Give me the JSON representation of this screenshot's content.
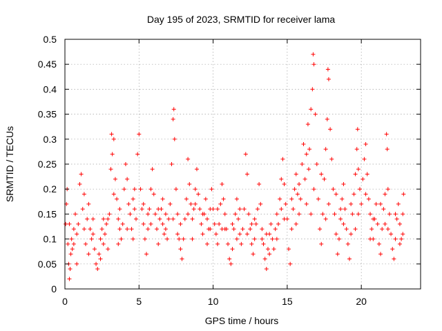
{
  "chart_data": {
    "type": "scatter",
    "title": "Day 195 of 2023, SRMTID for receiver lama",
    "xlabel": "GPS time / hours",
    "ylabel": "SRMTID / TECUs",
    "xlim": [
      0,
      24
    ],
    "ylim": [
      0,
      0.5
    ],
    "x_ticks": [
      0,
      5,
      10,
      15,
      20
    ],
    "x_tick_labels": [
      "0",
      "5",
      "10",
      "15",
      "20"
    ],
    "y_ticks": [
      0,
      0.05,
      0.1,
      0.15,
      0.2,
      0.25,
      0.3,
      0.35,
      0.4,
      0.45,
      0.5
    ],
    "y_tick_labels": [
      "0",
      "0.05",
      "0.1",
      "0.15",
      "0.2",
      "0.25",
      "0.3",
      "0.35",
      "0.4",
      "0.45",
      "0.5"
    ],
    "grid": true,
    "marker": "+",
    "marker_color": "#ff0000",
    "series": [
      {
        "name": "SRMTID",
        "points": [
          [
            0.05,
            0.13
          ],
          [
            0.1,
            0.17
          ],
          [
            0.15,
            0.2
          ],
          [
            0.2,
            0.09
          ],
          [
            0.25,
            0.05
          ],
          [
            0.3,
            0.02
          ],
          [
            0.35,
            0.04
          ],
          [
            0.4,
            0.07
          ],
          [
            0.45,
            0.1
          ],
          [
            0.5,
            0.08
          ],
          [
            0.6,
            0.12
          ],
          [
            0.7,
            0.15
          ],
          [
            0.8,
            0.11
          ],
          [
            0.9,
            0.13
          ],
          [
            1.0,
            0.21
          ],
          [
            1.1,
            0.23
          ],
          [
            1.2,
            0.16
          ],
          [
            1.3,
            0.12
          ],
          [
            1.4,
            0.09
          ],
          [
            1.5,
            0.14
          ],
          [
            1.6,
            0.17
          ],
          [
            1.7,
            0.12
          ],
          [
            1.8,
            0.1
          ],
          [
            1.9,
            0.14
          ],
          [
            2.0,
            0.08
          ],
          [
            2.1,
            0.05
          ],
          [
            2.2,
            0.04
          ],
          [
            2.3,
            0.07
          ],
          [
            2.4,
            0.1
          ],
          [
            2.5,
            0.12
          ],
          [
            2.6,
            0.09
          ],
          [
            2.7,
            0.11
          ],
          [
            2.8,
            0.13
          ],
          [
            2.9,
            0.08
          ],
          [
            3.0,
            0.15
          ],
          [
            3.1,
            0.24
          ],
          [
            3.15,
            0.31
          ],
          [
            3.2,
            0.27
          ],
          [
            3.3,
            0.3
          ],
          [
            3.4,
            0.22
          ],
          [
            3.5,
            0.18
          ],
          [
            3.6,
            0.14
          ],
          [
            3.7,
            0.12
          ],
          [
            3.8,
            0.1
          ],
          [
            3.9,
            0.13
          ],
          [
            4.0,
            0.2
          ],
          [
            4.1,
            0.25
          ],
          [
            4.2,
            0.22
          ],
          [
            4.3,
            0.17
          ],
          [
            4.4,
            0.15
          ],
          [
            4.5,
            0.12
          ],
          [
            4.6,
            0.18
          ],
          [
            4.7,
            0.2
          ],
          [
            4.8,
            0.14
          ],
          [
            4.9,
            0.27
          ],
          [
            5.0,
            0.31
          ],
          [
            5.1,
            0.2
          ],
          [
            5.2,
            0.16
          ],
          [
            5.3,
            0.13
          ],
          [
            5.4,
            0.1
          ],
          [
            5.5,
            0.07
          ],
          [
            5.6,
            0.12
          ],
          [
            5.7,
            0.16
          ],
          [
            5.8,
            0.2
          ],
          [
            5.9,
            0.24
          ],
          [
            6.0,
            0.19
          ],
          [
            6.1,
            0.15
          ],
          [
            6.2,
            0.12
          ],
          [
            6.3,
            0.09
          ],
          [
            6.4,
            0.14
          ],
          [
            6.5,
            0.16
          ],
          [
            6.6,
            0.13
          ],
          [
            6.7,
            0.11
          ],
          [
            6.8,
            0.15
          ],
          [
            6.9,
            0.1
          ],
          [
            7.0,
            0.14
          ],
          [
            7.1,
            0.17
          ],
          [
            7.2,
            0.25
          ],
          [
            7.3,
            0.34
          ],
          [
            7.35,
            0.36
          ],
          [
            7.4,
            0.3
          ],
          [
            7.5,
            0.2
          ],
          [
            7.6,
            0.15
          ],
          [
            7.7,
            0.1
          ],
          [
            7.8,
            0.08
          ],
          [
            7.9,
            0.06
          ],
          [
            8.0,
            0.1
          ],
          [
            8.1,
            0.14
          ],
          [
            8.2,
            0.18
          ],
          [
            8.3,
            0.26
          ],
          [
            8.4,
            0.21
          ],
          [
            8.5,
            0.17
          ],
          [
            8.6,
            0.14
          ],
          [
            8.7,
            0.16
          ],
          [
            8.8,
            0.2
          ],
          [
            8.9,
            0.24
          ],
          [
            9.0,
            0.19
          ],
          [
            9.1,
            0.16
          ],
          [
            9.2,
            0.13
          ],
          [
            9.3,
            0.11
          ],
          [
            9.4,
            0.15
          ],
          [
            9.5,
            0.18
          ],
          [
            9.6,
            0.14
          ],
          [
            9.7,
            0.12
          ],
          [
            9.8,
            0.16
          ],
          [
            9.9,
            0.2
          ],
          [
            10.0,
            0.16
          ],
          [
            10.1,
            0.13
          ],
          [
            10.2,
            0.11
          ],
          [
            10.3,
            0.09
          ],
          [
            10.4,
            0.13
          ],
          [
            10.5,
            0.17
          ],
          [
            10.6,
            0.21
          ],
          [
            10.7,
            0.18
          ],
          [
            10.8,
            0.15
          ],
          [
            10.9,
            0.12
          ],
          [
            11.0,
            0.09
          ],
          [
            11.1,
            0.06
          ],
          [
            11.2,
            0.05
          ],
          [
            11.3,
            0.08
          ],
          [
            11.4,
            0.12
          ],
          [
            11.5,
            0.15
          ],
          [
            11.6,
            0.18
          ],
          [
            11.7,
            0.14
          ],
          [
            11.8,
            0.11
          ],
          [
            11.9,
            0.09
          ],
          [
            12.0,
            0.12
          ],
          [
            12.1,
            0.16
          ],
          [
            12.2,
            0.27
          ],
          [
            12.3,
            0.23
          ],
          [
            12.4,
            0.15
          ],
          [
            12.5,
            0.12
          ],
          [
            12.6,
            0.09
          ],
          [
            12.7,
            0.07
          ],
          [
            12.8,
            0.1
          ],
          [
            12.9,
            0.13
          ],
          [
            13.0,
            0.16
          ],
          [
            13.1,
            0.21
          ],
          [
            13.2,
            0.17
          ],
          [
            13.3,
            0.12
          ],
          [
            13.4,
            0.09
          ],
          [
            13.5,
            0.06
          ],
          [
            13.6,
            0.04
          ],
          [
            13.7,
            0.08
          ],
          [
            13.8,
            0.11
          ],
          [
            13.9,
            0.13
          ],
          [
            14.0,
            0.1
          ],
          [
            14.1,
            0.08
          ],
          [
            14.2,
            0.12
          ],
          [
            14.3,
            0.15
          ],
          [
            14.4,
            0.13
          ],
          [
            14.5,
            0.18
          ],
          [
            14.6,
            0.22
          ],
          [
            14.7,
            0.26
          ],
          [
            14.8,
            0.21
          ],
          [
            14.9,
            0.17
          ],
          [
            15.0,
            0.14
          ],
          [
            15.1,
            0.08
          ],
          [
            15.2,
            0.05
          ],
          [
            15.3,
            0.12
          ],
          [
            15.4,
            0.16
          ],
          [
            15.5,
            0.2
          ],
          [
            15.6,
            0.23
          ],
          [
            15.7,
            0.19
          ],
          [
            15.8,
            0.15
          ],
          [
            15.9,
            0.18
          ],
          [
            16.0,
            0.25
          ],
          [
            16.1,
            0.29
          ],
          [
            16.2,
            0.22
          ],
          [
            16.3,
            0.27
          ],
          [
            16.4,
            0.33
          ],
          [
            16.5,
            0.28
          ],
          [
            16.6,
            0.36
          ],
          [
            16.7,
            0.4
          ],
          [
            16.75,
            0.47
          ],
          [
            16.8,
            0.45
          ],
          [
            16.9,
            0.35
          ],
          [
            17.0,
            0.25
          ],
          [
            17.1,
            0.18
          ],
          [
            17.2,
            0.12
          ],
          [
            17.3,
            0.09
          ],
          [
            17.4,
            0.15
          ],
          [
            17.5,
            0.22
          ],
          [
            17.6,
            0.28
          ],
          [
            17.7,
            0.34
          ],
          [
            17.75,
            0.44
          ],
          [
            17.8,
            0.42
          ],
          [
            17.9,
            0.32
          ],
          [
            18.0,
            0.26
          ],
          [
            18.1,
            0.2
          ],
          [
            18.2,
            0.15
          ],
          [
            18.3,
            0.11
          ],
          [
            18.4,
            0.07
          ],
          [
            18.5,
            0.1
          ],
          [
            18.6,
            0.14
          ],
          [
            18.7,
            0.18
          ],
          [
            18.8,
            0.21
          ],
          [
            18.9,
            0.16
          ],
          [
            19.0,
            0.12
          ],
          [
            19.1,
            0.09
          ],
          [
            19.2,
            0.06
          ],
          [
            19.3,
            0.11
          ],
          [
            19.4,
            0.15
          ],
          [
            19.5,
            0.19
          ],
          [
            19.6,
            0.23
          ],
          [
            19.7,
            0.28
          ],
          [
            19.75,
            0.32
          ],
          [
            19.8,
            0.24
          ],
          [
            19.9,
            0.2
          ],
          [
            20.0,
            0.17
          ],
          [
            20.1,
            0.22
          ],
          [
            20.2,
            0.26
          ],
          [
            20.3,
            0.29
          ],
          [
            20.4,
            0.23
          ],
          [
            20.5,
            0.18
          ],
          [
            20.6,
            0.15
          ],
          [
            20.7,
            0.12
          ],
          [
            20.8,
            0.1
          ],
          [
            20.9,
            0.14
          ],
          [
            21.0,
            0.17
          ],
          [
            21.1,
            0.13
          ],
          [
            21.2,
            0.09
          ],
          [
            21.3,
            0.07
          ],
          [
            21.4,
            0.12
          ],
          [
            21.5,
            0.16
          ],
          [
            21.6,
            0.19
          ],
          [
            21.7,
            0.31
          ],
          [
            21.75,
            0.28
          ],
          [
            21.8,
            0.2
          ],
          [
            21.9,
            0.15
          ],
          [
            22.0,
            0.11
          ],
          [
            22.1,
            0.08
          ],
          [
            22.2,
            0.06
          ],
          [
            22.3,
            0.1
          ],
          [
            22.4,
            0.14
          ],
          [
            22.5,
            0.17
          ],
          [
            22.6,
            0.13
          ],
          [
            22.7,
            0.1
          ],
          [
            22.8,
            0.15
          ],
          [
            22.85,
            0.19
          ],
          [
            0.3,
            0.13
          ],
          [
            0.8,
            0.05
          ],
          [
            1.3,
            0.19
          ],
          [
            1.9,
            0.11
          ],
          [
            2.4,
            0.06
          ],
          [
            2.9,
            0.14
          ],
          [
            3.3,
            0.19
          ],
          [
            3.7,
            0.16
          ],
          [
            4.2,
            0.12
          ],
          [
            4.7,
            0.16
          ],
          [
            5.3,
            0.17
          ],
          [
            5.8,
            0.13
          ],
          [
            6.3,
            0.16
          ],
          [
            6.8,
            0.12
          ],
          [
            7.3,
            0.14
          ],
          [
            7.8,
            0.13
          ],
          [
            8.3,
            0.15
          ],
          [
            8.8,
            0.17
          ],
          [
            9.3,
            0.15
          ],
          [
            9.8,
            0.12
          ],
          [
            10.3,
            0.16
          ],
          [
            10.8,
            0.12
          ],
          [
            11.3,
            0.13
          ],
          [
            11.8,
            0.16
          ],
          [
            12.3,
            0.11
          ],
          [
            12.8,
            0.14
          ],
          [
            13.3,
            0.1
          ],
          [
            13.8,
            0.07
          ],
          [
            14.3,
            0.1
          ],
          [
            14.8,
            0.14
          ],
          [
            15.3,
            0.18
          ],
          [
            15.8,
            0.21
          ],
          [
            16.3,
            0.17
          ],
          [
            16.8,
            0.2
          ],
          [
            17.3,
            0.23
          ],
          [
            17.8,
            0.17
          ],
          [
            18.3,
            0.19
          ],
          [
            18.8,
            0.13
          ],
          [
            19.3,
            0.17
          ],
          [
            19.8,
            0.15
          ],
          [
            20.3,
            0.19
          ],
          [
            20.8,
            0.14
          ],
          [
            21.3,
            0.17
          ],
          [
            21.8,
            0.12
          ],
          [
            22.3,
            0.15
          ],
          [
            22.8,
            0.11
          ],
          [
            0.6,
            0.09
          ],
          [
            1.6,
            0.07
          ],
          [
            2.6,
            0.14
          ],
          [
            3.6,
            0.09
          ],
          [
            4.6,
            0.1
          ],
          [
            5.6,
            0.15
          ],
          [
            6.6,
            0.18
          ],
          [
            7.6,
            0.11
          ],
          [
            8.6,
            0.1
          ],
          [
            9.6,
            0.09
          ],
          [
            10.6,
            0.12
          ],
          [
            11.6,
            0.1
          ],
          [
            12.6,
            0.13
          ],
          [
            13.6,
            0.11
          ],
          [
            14.6,
            0.16
          ],
          [
            15.6,
            0.13
          ],
          [
            16.6,
            0.15
          ],
          [
            17.6,
            0.14
          ],
          [
            18.6,
            0.16
          ],
          [
            19.6,
            0.12
          ],
          [
            20.6,
            0.1
          ],
          [
            21.6,
            0.13
          ],
          [
            22.6,
            0.09
          ],
          [
            16.45,
            0.24
          ]
        ]
      }
    ]
  }
}
